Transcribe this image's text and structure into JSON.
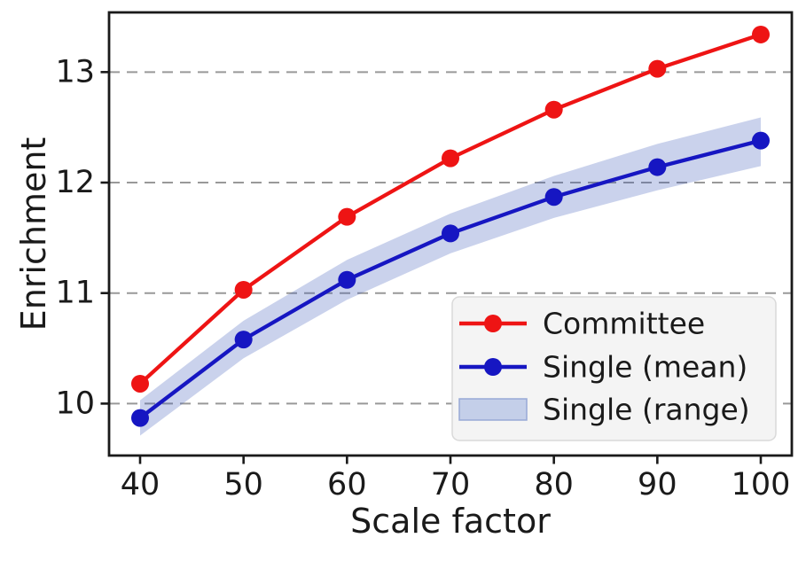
{
  "chart_data": {
    "type": "line",
    "title": "",
    "xlabel": "Scale factor",
    "ylabel": "Enrichment",
    "x": [
      40,
      50,
      60,
      70,
      80,
      90,
      100
    ],
    "xticks": [
      "40",
      "50",
      "60",
      "70",
      "80",
      "90",
      "100"
    ],
    "yticks": [
      "10",
      "11",
      "12",
      "13"
    ],
    "xlim": [
      37,
      103
    ],
    "ylim": [
      9.53,
      13.54
    ],
    "grid": {
      "axis": "y",
      "style": "dashed",
      "color": "#999999"
    },
    "legend": {
      "position": "lower-right"
    },
    "series": [
      {
        "name": "Committee",
        "kind": "line+marker",
        "color": "#ee1414",
        "values": [
          10.18,
          11.03,
          11.69,
          12.22,
          12.66,
          13.03,
          13.34
        ]
      },
      {
        "name": "Single (mean)",
        "kind": "line+marker",
        "color": "#1616c2",
        "values": [
          9.87,
          10.58,
          11.12,
          11.54,
          11.87,
          12.14,
          12.38
        ]
      },
      {
        "name": "Single (range)",
        "kind": "band",
        "fill": "rgba(58, 90, 185, 0.27)",
        "legend_fill": "#c4cfe9",
        "lower": [
          9.71,
          10.41,
          10.94,
          11.36,
          11.68,
          11.93,
          12.15
        ],
        "upper": [
          10.03,
          10.75,
          11.3,
          11.72,
          12.06,
          12.35,
          12.59
        ]
      }
    ],
    "colors": {
      "axes": "#1a1a1a",
      "background": "#ffffff",
      "legend_bg": "#f4f4f4"
    }
  }
}
